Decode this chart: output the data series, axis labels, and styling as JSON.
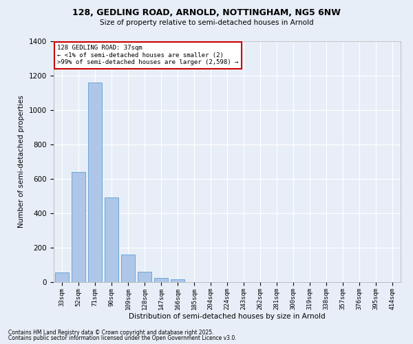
{
  "title_line1": "128, GEDLING ROAD, ARNOLD, NOTTINGHAM, NG5 6NW",
  "title_line2": "Size of property relative to semi-detached houses in Arnold",
  "xlabel": "Distribution of semi-detached houses by size in Arnold",
  "ylabel": "Number of semi-detached properties",
  "footnote_line1": "Contains HM Land Registry data © Crown copyright and database right 2025.",
  "footnote_line2": "Contains public sector information licensed under the Open Government Licence v3.0.",
  "annotation_title": "128 GEDLING ROAD: 37sqm",
  "annotation_line2": "← <1% of semi-detached houses are smaller (2)",
  "annotation_line3": ">99% of semi-detached houses are larger (2,598) →",
  "bar_categories": [
    "33sqm",
    "52sqm",
    "71sqm",
    "90sqm",
    "109sqm",
    "128sqm",
    "147sqm",
    "166sqm",
    "185sqm",
    "204sqm",
    "224sqm",
    "243sqm",
    "262sqm",
    "281sqm",
    "300sqm",
    "319sqm",
    "338sqm",
    "357sqm",
    "376sqm",
    "395sqm",
    "414sqm"
  ],
  "bar_values": [
    57,
    641,
    1160,
    493,
    160,
    62,
    25,
    18,
    0,
    0,
    0,
    0,
    0,
    0,
    0,
    0,
    0,
    0,
    0,
    0,
    0
  ],
  "bar_color": "#aec6e8",
  "bar_edge_color": "#5a9fd4",
  "annotation_box_edge_color": "#cc0000",
  "background_color": "#e8eef7",
  "plot_bg_color": "#e8eef7",
  "grid_color": "#ffffff",
  "ylim": [
    0,
    1400
  ],
  "yticks": [
    0,
    200,
    400,
    600,
    800,
    1000,
    1200,
    1400
  ]
}
